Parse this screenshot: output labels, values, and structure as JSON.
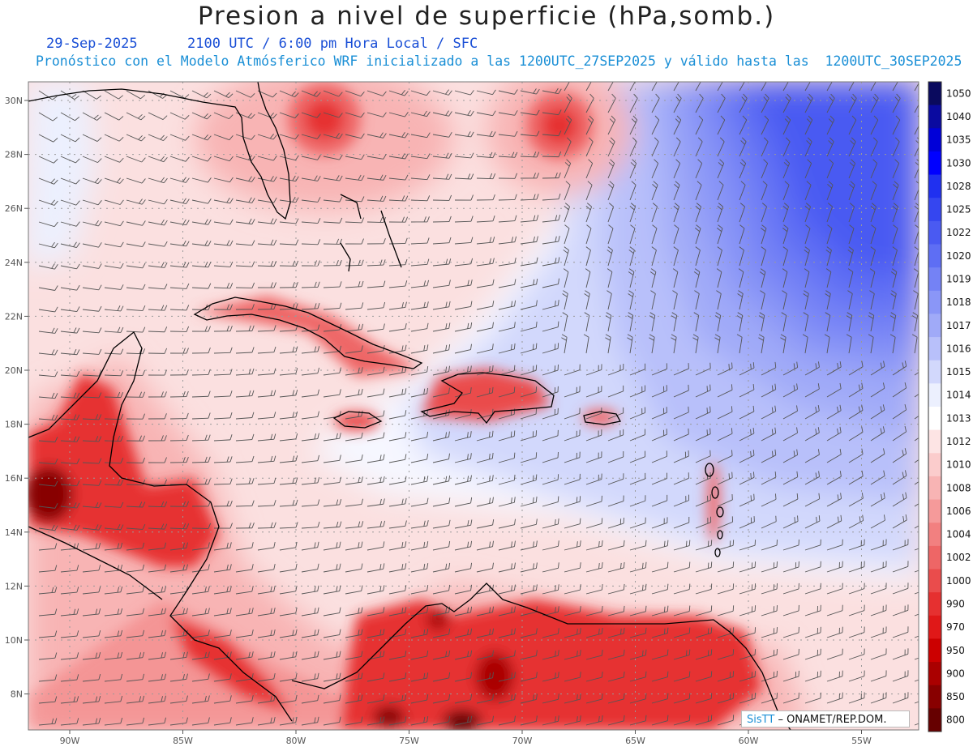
{
  "title": "Presion a nivel de superficie (hPa,somb.)",
  "subtitle": {
    "date": "29-Sep-2025",
    "time": "2100 UTC / 6:00 pm Hora Local / SFC",
    "forecast": "Pronóstico con el Modelo Atmósferico WRF inicializado a las 1200UTC_27SEP2025 y válido hasta las  1200UTC_30SEP2025"
  },
  "axes": {
    "lat_labels": [
      "30N",
      "28N",
      "26N",
      "24N",
      "22N",
      "20N",
      "18N",
      "16N",
      "14N",
      "12N",
      "10N",
      "8N"
    ],
    "lon_labels": [
      "90W",
      "85W",
      "80W",
      "75W",
      "70W",
      "65W",
      "60W",
      "55W"
    ]
  },
  "colorbar": {
    "levels": [
      "1050",
      "1040",
      "1035",
      "1030",
      "1028",
      "1025",
      "1022",
      "1020",
      "1019",
      "1018",
      "1017",
      "1016",
      "1015",
      "1014",
      "1013",
      "1012",
      "1010",
      "1008",
      "1006",
      "1004",
      "1002",
      "1000",
      "990",
      "970",
      "950",
      "900",
      "850",
      "800"
    ],
    "colors": [
      "#0a0a5e",
      "#0a0aa0",
      "#0000d8",
      "#0000ff",
      "#2030f0",
      "#3546f0",
      "#4a5af2",
      "#5e6ef4",
      "#7482f5",
      "#8a96f7",
      "#a0aaf8",
      "#b8c0fa",
      "#d2d8fc",
      "#ecf0fe",
      "#ffffff",
      "#fde4e4",
      "#fbcccc",
      "#f8b4b4",
      "#f59a9a",
      "#f28080",
      "#ee6666",
      "#ea4c4c",
      "#e63030",
      "#e01818",
      "#cc0000",
      "#aa0000",
      "#880000",
      "#660000"
    ]
  },
  "credit": {
    "brand": "SisTT",
    "org": "– ONAMET/REP.DOM."
  },
  "colors": {
    "title": "#222222",
    "date_line": "#1a4fd6",
    "forecast_line": "#1a8fd6"
  }
}
